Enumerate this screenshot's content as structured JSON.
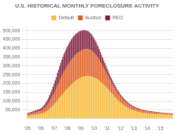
{
  "chart_data": {
    "type": "bar",
    "title": "U.S. HISTORICAL MONTHLY FORECLOSURE ACTIVITY",
    "stacked": true,
    "grid": true,
    "legend": "top",
    "categories": [
      "'05",
      null,
      null,
      null,
      null,
      null,
      null,
      null,
      null,
      null,
      null,
      null,
      "'06",
      null,
      null,
      null,
      null,
      null,
      null,
      null,
      null,
      null,
      null,
      null,
      "'07",
      null,
      null,
      null,
      null,
      null,
      null,
      null,
      null,
      null,
      null,
      null,
      "'08",
      null,
      null,
      null,
      null,
      null,
      null,
      null,
      null,
      null,
      null,
      null,
      "'09",
      null,
      null,
      null,
      null,
      null,
      null,
      null,
      null,
      null,
      null,
      null,
      "'10",
      null,
      null,
      null,
      null,
      null,
      null,
      null,
      null,
      null,
      null,
      null,
      "'11",
      null,
      null,
      null,
      null,
      null,
      null,
      null,
      null,
      null,
      null,
      null,
      "'12",
      null,
      null,
      null,
      null,
      null,
      null,
      null,
      null,
      null,
      null,
      null,
      "'13",
      null,
      null,
      null,
      null,
      null,
      null,
      null,
      null,
      null,
      null,
      null,
      "'14",
      null,
      null,
      null,
      null,
      null,
      null,
      null,
      null,
      null,
      null,
      null,
      "'15",
      null,
      null,
      null,
      null,
      null,
      null,
      null,
      null,
      null,
      null,
      null
    ],
    "ylim": [
      0,
      520000
    ],
    "yticks": [
      {
        "value": 50000,
        "label": "50,000"
      },
      {
        "value": 100000,
        "label": "100,000"
      },
      {
        "value": 150000,
        "label": "150,000"
      },
      {
        "value": 200000,
        "label": "200,000"
      },
      {
        "value": 250000,
        "label": "250,000"
      },
      {
        "value": 300000,
        "label": "300,000"
      },
      {
        "value": 350000,
        "label": "350,000"
      },
      {
        "value": 400000,
        "label": "400,000"
      },
      {
        "value": 450000,
        "label": "450,000"
      },
      {
        "value": 500000,
        "label": "500,000"
      }
    ],
    "series": [
      {
        "name": "Default",
        "color": "#F5B935",
        "values": [
          15000,
          16000,
          17000,
          18000,
          19000,
          20000,
          21000,
          22000,
          23000,
          24000,
          25000,
          26000,
          27000,
          29000,
          31000,
          34000,
          37000,
          41000,
          45000,
          50000,
          55000,
          61000,
          67000,
          73000,
          80000,
          87000,
          95000,
          103000,
          111000,
          119000,
          127000,
          135000,
          143000,
          151000,
          158000,
          165000,
          171000,
          177000,
          183000,
          189000,
          195000,
          201000,
          207000,
          212000,
          217000,
          221000,
          225000,
          229000,
          232000,
          235000,
          238000,
          240000,
          241000,
          242000,
          243000,
          243000,
          242000,
          241000,
          239000,
          237000,
          234000,
          231000,
          228000,
          224000,
          220000,
          215000,
          210000,
          205000,
          199000,
          193000,
          187000,
          180000,
          173000,
          166000,
          159000,
          152000,
          145000,
          138000,
          131000,
          124000,
          117000,
          110000,
          104000,
          98000,
          92000,
          87000,
          82000,
          77000,
          73000,
          69000,
          65000,
          61000,
          58000,
          55000,
          52000,
          50000,
          47000,
          45000,
          43000,
          41000,
          39000,
          38000,
          36000,
          35000,
          34000,
          33000,
          32000,
          31000,
          30000,
          30000,
          29000,
          28000,
          28000,
          27000,
          27000,
          26000,
          26000,
          25000,
          25000,
          25000,
          24000,
          24000,
          23000,
          23000,
          23000,
          22000,
          22000,
          22000,
          21000,
          21000,
          21000,
          20000
        ]
      },
      {
        "name": "Auction",
        "color": "#E05A20",
        "values": [
          10000,
          11000,
          11000,
          12000,
          12000,
          13000,
          13000,
          14000,
          15000,
          15000,
          16000,
          17000,
          18000,
          20000,
          22000,
          25000,
          28000,
          31000,
          35000,
          39000,
          44000,
          49000,
          54000,
          60000,
          66000,
          72000,
          78000,
          85000,
          91000,
          97000,
          103000,
          108000,
          113000,
          118000,
          122000,
          126000,
          130000,
          134000,
          137000,
          140000,
          143000,
          145000,
          147000,
          149000,
          150000,
          151000,
          152000,
          153000,
          153000,
          154000,
          154000,
          154000,
          154000,
          153000,
          153000,
          152000,
          151000,
          149000,
          147000,
          144000,
          141000,
          137000,
          133000,
          129000,
          124000,
          119000,
          113000,
          107000,
          101000,
          95000,
          90000,
          84000,
          79000,
          74000,
          69000,
          64000,
          60000,
          56000,
          52000,
          48000,
          45000,
          42000,
          39000,
          36000,
          33000,
          31000,
          29000,
          27000,
          25000,
          24000,
          22000,
          21000,
          20000,
          19000,
          18000,
          17000,
          16000,
          16000,
          15000,
          14000,
          14000,
          13000,
          13000,
          12000,
          12000,
          12000,
          11000,
          11000,
          11000,
          10000,
          10000,
          10000,
          10000,
          9000,
          9000,
          9000,
          9000,
          9000,
          8000,
          8000,
          8000,
          8000,
          8000,
          8000,
          7000,
          7000,
          7000,
          7000,
          7000,
          7000,
          7000,
          7000
        ]
      },
      {
        "name": "REO",
        "color": "#7A1A3A",
        "values": [
          6000,
          7000,
          7000,
          8000,
          8000,
          9000,
          9000,
          10000,
          10000,
          11000,
          11000,
          12000,
          13000,
          14000,
          16000,
          18000,
          20000,
          23000,
          26000,
          30000,
          34000,
          38000,
          43000,
          48000,
          53000,
          58000,
          64000,
          70000,
          76000,
          82000,
          87000,
          92000,
          96000,
          100000,
          103000,
          106000,
          109000,
          111000,
          113000,
          115000,
          116000,
          117000,
          117000,
          117000,
          117000,
          116000,
          116000,
          115000,
          114000,
          113000,
          111000,
          110000,
          108000,
          106000,
          104000,
          102000,
          99000,
          96000,
          93000,
          89000,
          85000,
          80000,
          75000,
          70000,
          65000,
          60000,
          55000,
          51000,
          47000,
          43000,
          39000,
          36000,
          33000,
          30000,
          27000,
          25000,
          23000,
          21000,
          19000,
          18000,
          17000,
          16000,
          15000,
          14000,
          13000,
          12000,
          12000,
          11000,
          10000,
          10000,
          9000,
          9000,
          8000,
          8000,
          8000,
          7000,
          7000,
          7000,
          6000,
          6000,
          6000,
          6000,
          5000,
          5000,
          5000,
          5000,
          5000,
          5000,
          4000,
          4000,
          4000,
          4000,
          4000,
          4000,
          4000,
          4000,
          4000,
          4000,
          4000,
          4000,
          3000,
          3000,
          3000,
          3000,
          3000,
          3000,
          3000,
          3000,
          3000,
          3000,
          3000,
          3000
        ]
      }
    ]
  }
}
